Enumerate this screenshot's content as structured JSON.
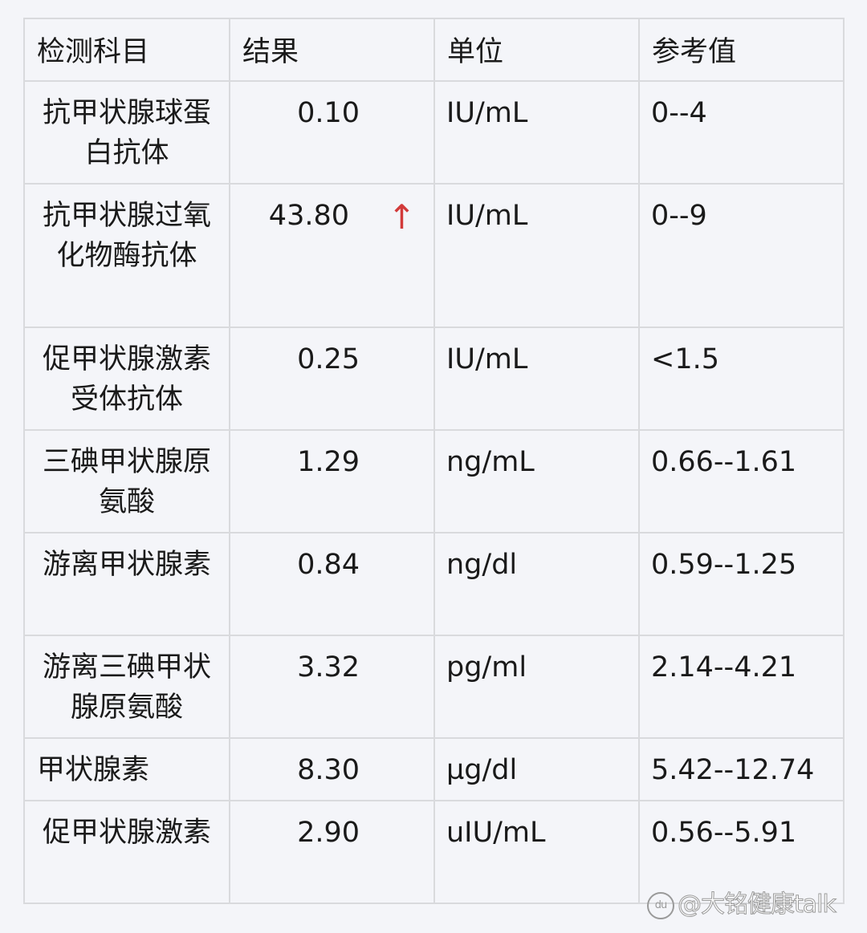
{
  "headers": [
    "检测科目",
    "结果",
    "单位",
    "参考值"
  ],
  "rows": [
    {
      "name": "抗甲状腺球蛋白抗体",
      "result": "0.10",
      "unit": "IU/mL",
      "ref": "0--4",
      "flag": ""
    },
    {
      "name": "抗甲状腺过氧化物酶抗体",
      "result": "43.80",
      "unit": "IU/mL",
      "ref": "0--9",
      "flag": "↑"
    },
    {
      "name": "促甲状腺激素受体抗体",
      "result": "0.25",
      "unit": "IU/mL",
      "ref": "<1.5",
      "flag": ""
    },
    {
      "name": "三碘甲状腺原氨酸",
      "result": "1.29",
      "unit": "ng/mL",
      "ref": "0.66--1.61",
      "flag": ""
    },
    {
      "name": "游离甲状腺素",
      "result": "0.84",
      "unit": "ng/dl",
      "ref": "0.59--1.25",
      "flag": ""
    },
    {
      "name": "游离三碘甲状腺原氨酸",
      "result": "3.32",
      "unit": "pg/ml",
      "ref": "2.14--4.21",
      "flag": ""
    },
    {
      "name": "甲状腺素",
      "result": "8.30",
      "unit": "µg/dl",
      "ref": "5.42--12.74",
      "flag": ""
    },
    {
      "name": "促甲状腺激素",
      "result": "2.90",
      "unit": "uIU/mL",
      "ref": "0.56--5.91",
      "flag": ""
    }
  ],
  "flag_color": "#d23a3a",
  "watermark": "@大铭健康talk"
}
